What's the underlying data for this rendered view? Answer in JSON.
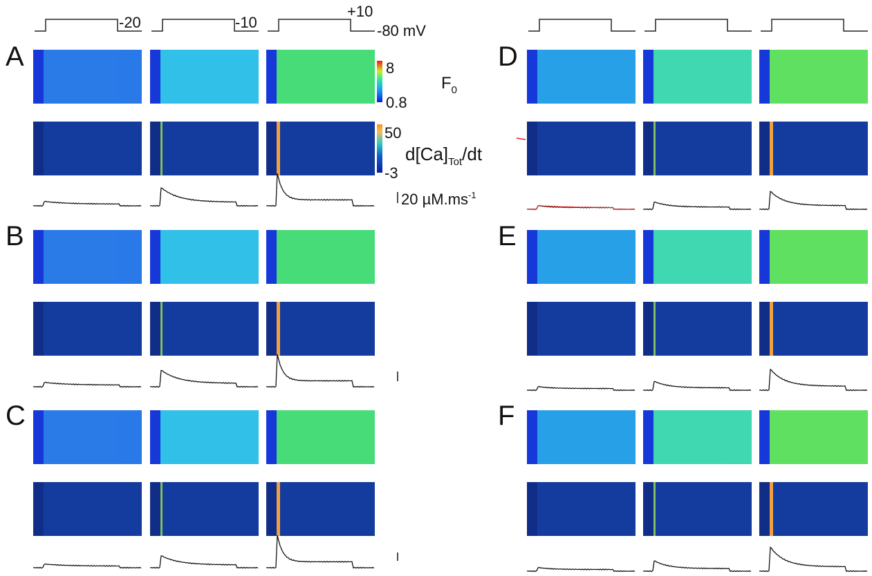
{
  "voltages": [
    "-20",
    "-10",
    "+10"
  ],
  "holding": "-80 mV",
  "panels": [
    "A",
    "B",
    "C",
    "D",
    "E",
    "F"
  ],
  "colorbar_f": {
    "max": "8",
    "min": "0.8",
    "label": "F",
    "sub": "0"
  },
  "colorbar_d": {
    "max": "50",
    "min": "-3",
    "label_pre": "d[Ca]",
    "sub": "Tot",
    "label_post": "/dt"
  },
  "scale": {
    "text": "20 µM.ms",
    "sup": "-1"
  }
}
